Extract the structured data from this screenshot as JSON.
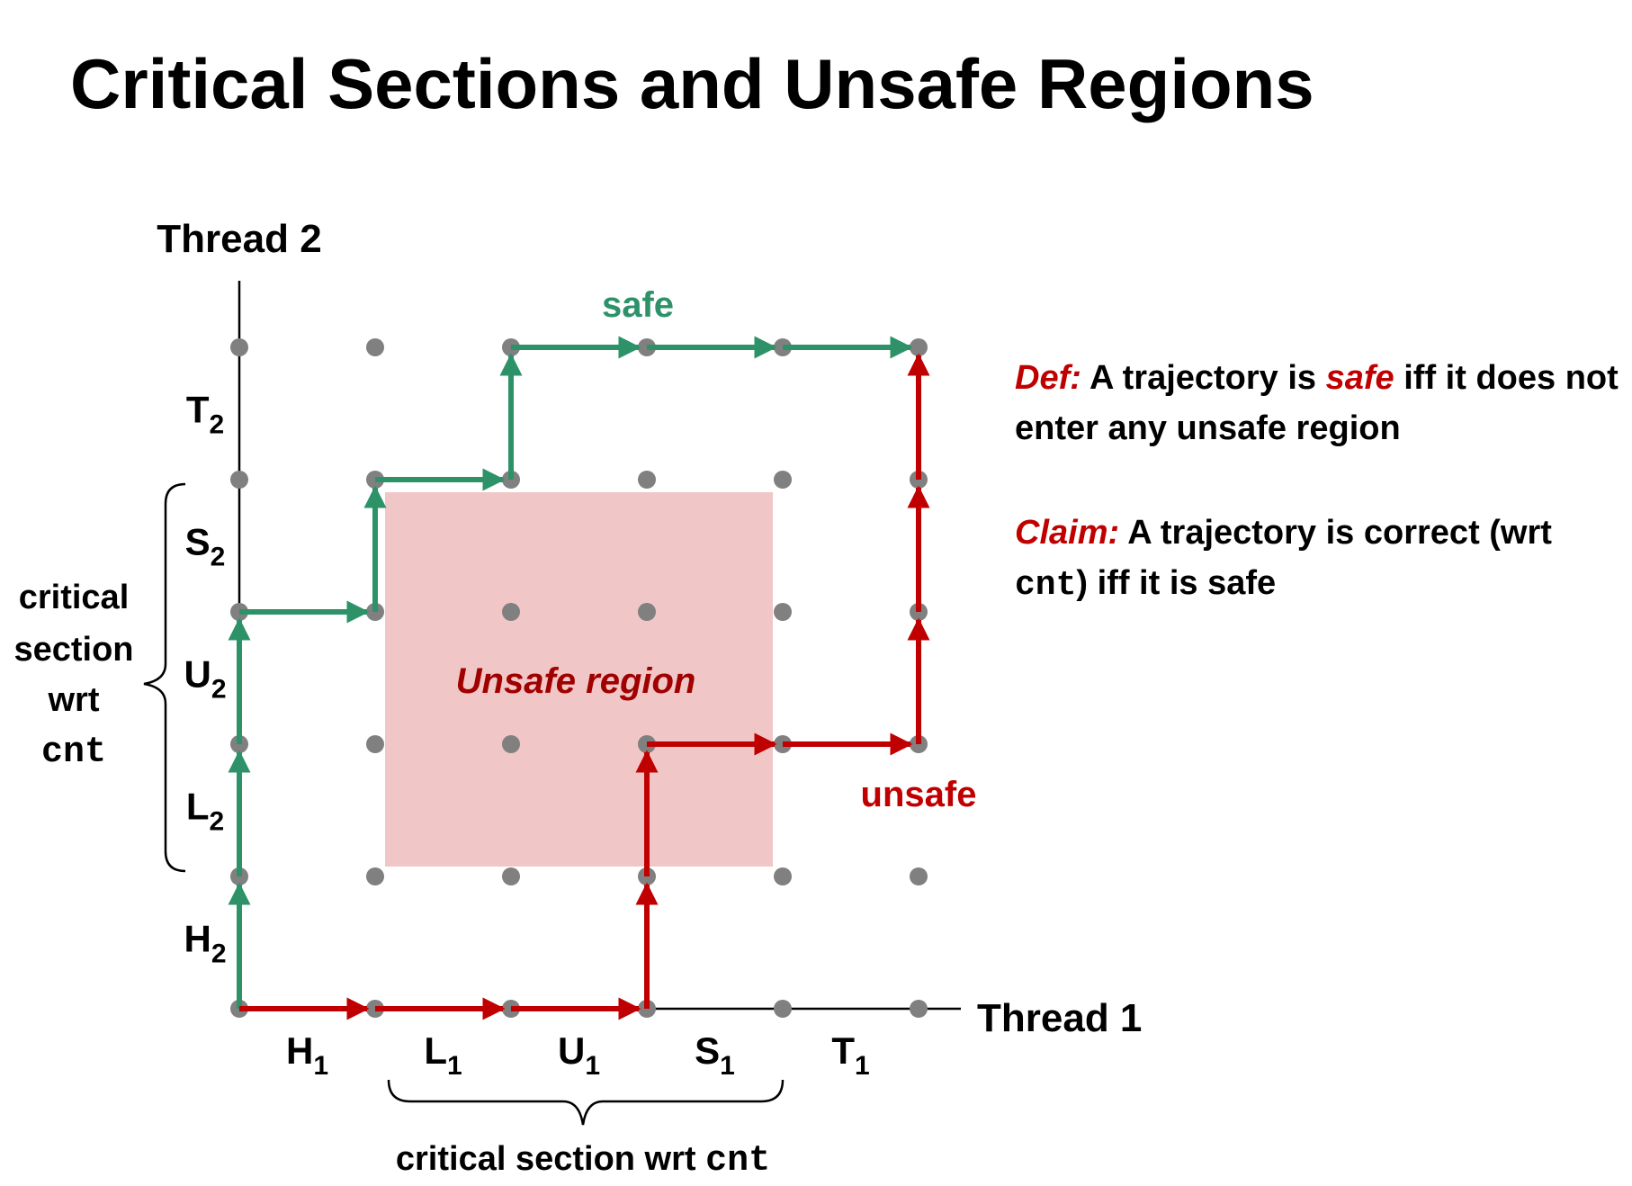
{
  "title": "Critical Sections and Unsafe Regions",
  "axes": {
    "y_label": "Thread 2",
    "x_label": "Thread 1"
  },
  "x_segments": [
    {
      "letter": "H",
      "sub": "1"
    },
    {
      "letter": "L",
      "sub": "1"
    },
    {
      "letter": "U",
      "sub": "1"
    },
    {
      "letter": "S",
      "sub": "1"
    },
    {
      "letter": "T",
      "sub": "1"
    }
  ],
  "y_segments": [
    {
      "letter": "H",
      "sub": "2"
    },
    {
      "letter": "L",
      "sub": "2"
    },
    {
      "letter": "U",
      "sub": "2"
    },
    {
      "letter": "S",
      "sub": "2"
    },
    {
      "letter": "T",
      "sub": "2"
    }
  ],
  "critical_y": {
    "line1": "critical",
    "line2": "section",
    "line3": "wrt",
    "code": "cnt"
  },
  "critical_x": {
    "text": "critical section wrt ",
    "code": "cnt"
  },
  "unsafe_region_label": "Unsafe region",
  "safe_label": "safe",
  "unsafe_label": "unsafe",
  "definition": {
    "def_label": "Def:",
    "def_part1": " A trajectory is ",
    "def_safe_word": "safe",
    "def_part2": "  iff it does not enter any unsafe region",
    "claim_label": "Claim:",
    "claim_part1": " A trajectory is  correct (wrt ",
    "claim_code": "cnt",
    "claim_part2": ")  iff it is safe"
  },
  "colors": {
    "safe": "#2e9269",
    "unsafe": "#c00000",
    "unsafe_region_fill": "#f1c6c7",
    "grid_dot": "#808080",
    "axis": "#000000"
  }
}
